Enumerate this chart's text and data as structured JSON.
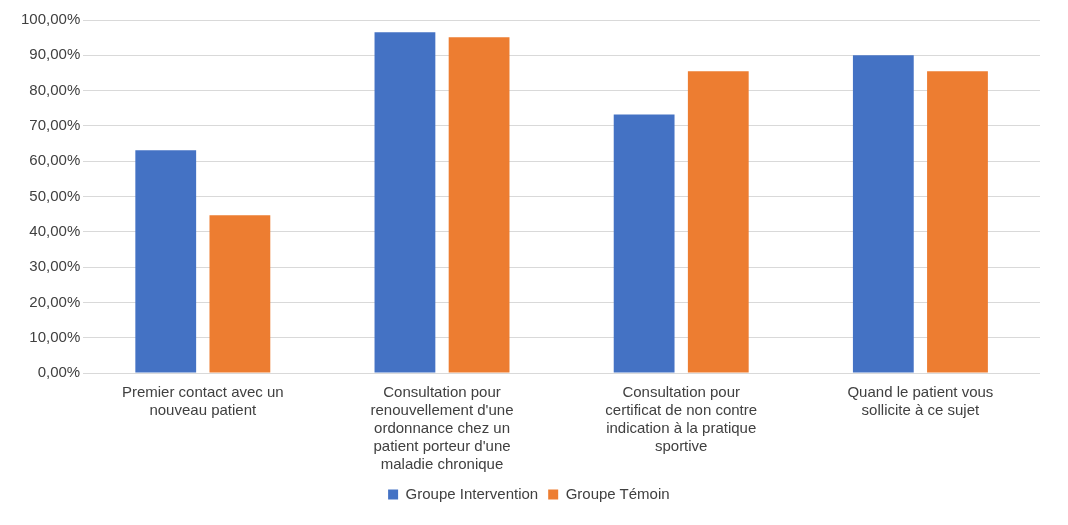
{
  "chart_data": {
    "type": "bar",
    "categories": [
      "Premier contact avec un nouveau patient",
      "Consultation pour renouvellement d'une ordonnance chez un patient porteur d'une maladie chronique",
      "Consultation pour certificat de non contre indication à la pratique sportive",
      "Quand le patient vous sollicite à ce sujet"
    ],
    "series": [
      {
        "name": "Groupe Intervention",
        "color": "#4472c4",
        "values": [
          63.1,
          96.5,
          73.2,
          90.0
        ]
      },
      {
        "name": "Groupe Témoin",
        "color": "#ed7d31",
        "values": [
          44.7,
          95.1,
          85.5,
          85.5
        ]
      }
    ],
    "ylim": [
      0,
      100
    ],
    "yticks": [
      {
        "value": 0,
        "label": "0,00%"
      },
      {
        "value": 10,
        "label": "10,00%"
      },
      {
        "value": 20,
        "label": "20,00%"
      },
      {
        "value": 30,
        "label": "30,00%"
      },
      {
        "value": 40,
        "label": "40,00%"
      },
      {
        "value": 50,
        "label": "50,00%"
      },
      {
        "value": 60,
        "label": "60,00%"
      },
      {
        "value": 70,
        "label": "70,00%"
      },
      {
        "value": 80,
        "label": "80,00%"
      },
      {
        "value": 90,
        "label": "90,00%"
      },
      {
        "value": 100,
        "label": "100,00%"
      }
    ],
    "grid": "y",
    "legend": "bottom"
  }
}
